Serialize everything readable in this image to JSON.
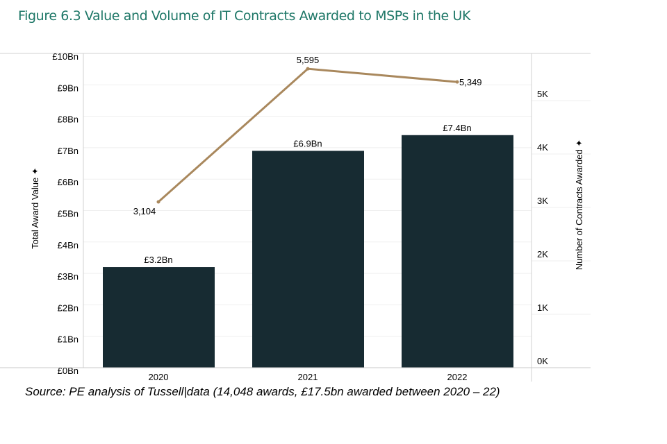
{
  "title": "Figure 6.3 Value and Volume of IT Contracts Awarded to MSPs in the UK",
  "source": "Source: PE analysis of Tussell|data (14,048 awards, £17.5bn awarded between 2020 – 22)",
  "colors": {
    "bar": "#172b32",
    "line": "#a9885d",
    "title": "#1e7767"
  },
  "chart_data": {
    "type": "bar+line",
    "categories": [
      "2020",
      "2021",
      "2022"
    ],
    "series": [
      {
        "name": "Total Award Value",
        "type": "bar",
        "axis": "left",
        "values": [
          3.2,
          6.9,
          7.4
        ],
        "labels": [
          "£3.2Bn",
          "£6.9Bn",
          "£7.4Bn"
        ]
      },
      {
        "name": "Number of Contracts Awarded",
        "type": "line",
        "axis": "right",
        "values": [
          3104,
          5595,
          5349
        ],
        "labels": [
          "3,104",
          "5,595",
          "5,349"
        ]
      }
    ],
    "ylabel": "Total Award Value",
    "y2label": "Number of Contracts Awarded",
    "ylim": [
      0,
      10
    ],
    "y2lim": [
      0,
      5650
    ],
    "yticks": [
      "£0Bn",
      "£1Bn",
      "£2Bn",
      "£3Bn",
      "£4Bn",
      "£5Bn",
      "£6Bn",
      "£7Bn",
      "£8Bn",
      "£9Bn",
      "£10Bn"
    ],
    "y2ticks": [
      "0K",
      "1K",
      "2K",
      "3K",
      "4K",
      "5K"
    ],
    "grid": true
  }
}
